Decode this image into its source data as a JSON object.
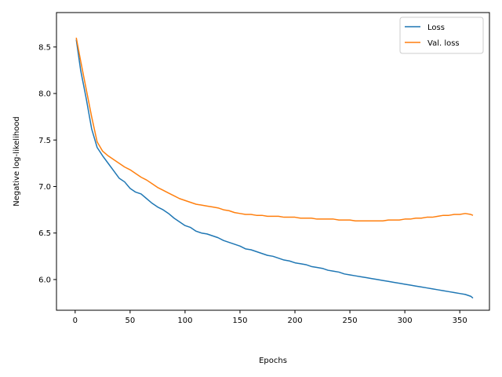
{
  "chart_data": {
    "type": "line",
    "title": "",
    "xlabel": "Epochs",
    "ylabel": "Negative log-likelihood",
    "xlim": [
      -17,
      377
    ],
    "ylim": [
      5.67,
      8.87
    ],
    "xticks": [
      0,
      50,
      100,
      150,
      200,
      250,
      300,
      350
    ],
    "yticks": [
      6.0,
      6.5,
      7.0,
      7.5,
      8.0,
      8.5
    ],
    "grid": false,
    "legend_position": "top-right",
    "series": [
      {
        "name": "Loss",
        "color": "#1f77b4",
        "points": [
          [
            1,
            8.58
          ],
          [
            5,
            8.25
          ],
          [
            10,
            7.95
          ],
          [
            15,
            7.62
          ],
          [
            20,
            7.42
          ],
          [
            25,
            7.33
          ],
          [
            30,
            7.25
          ],
          [
            35,
            7.17
          ],
          [
            40,
            7.09
          ],
          [
            45,
            7.05
          ],
          [
            50,
            6.98
          ],
          [
            55,
            6.94
          ],
          [
            60,
            6.92
          ],
          [
            65,
            6.87
          ],
          [
            70,
            6.82
          ],
          [
            75,
            6.78
          ],
          [
            80,
            6.75
          ],
          [
            85,
            6.71
          ],
          [
            90,
            6.66
          ],
          [
            95,
            6.62
          ],
          [
            100,
            6.58
          ],
          [
            105,
            6.56
          ],
          [
            110,
            6.52
          ],
          [
            115,
            6.5
          ],
          [
            120,
            6.49
          ],
          [
            125,
            6.47
          ],
          [
            130,
            6.45
          ],
          [
            135,
            6.42
          ],
          [
            140,
            6.4
          ],
          [
            145,
            6.38
          ],
          [
            150,
            6.36
          ],
          [
            155,
            6.33
          ],
          [
            160,
            6.32
          ],
          [
            165,
            6.3
          ],
          [
            170,
            6.28
          ],
          [
            175,
            6.26
          ],
          [
            180,
            6.25
          ],
          [
            185,
            6.23
          ],
          [
            190,
            6.21
          ],
          [
            195,
            6.2
          ],
          [
            200,
            6.18
          ],
          [
            205,
            6.17
          ],
          [
            210,
            6.16
          ],
          [
            215,
            6.14
          ],
          [
            220,
            6.13
          ],
          [
            225,
            6.12
          ],
          [
            230,
            6.1
          ],
          [
            235,
            6.09
          ],
          [
            240,
            6.08
          ],
          [
            245,
            6.06
          ],
          [
            250,
            6.05
          ],
          [
            255,
            6.04
          ],
          [
            260,
            6.03
          ],
          [
            265,
            6.02
          ],
          [
            270,
            6.01
          ],
          [
            275,
            6.0
          ],
          [
            280,
            5.99
          ],
          [
            285,
            5.98
          ],
          [
            290,
            5.97
          ],
          [
            295,
            5.96
          ],
          [
            300,
            5.95
          ],
          [
            305,
            5.94
          ],
          [
            310,
            5.93
          ],
          [
            315,
            5.92
          ],
          [
            320,
            5.91
          ],
          [
            325,
            5.9
          ],
          [
            330,
            5.89
          ],
          [
            335,
            5.88
          ],
          [
            340,
            5.87
          ],
          [
            345,
            5.86
          ],
          [
            350,
            5.85
          ],
          [
            355,
            5.84
          ],
          [
            360,
            5.82
          ],
          [
            362,
            5.8
          ]
        ]
      },
      {
        "name": "Val. loss",
        "color": "#ff7f0e",
        "points": [
          [
            1,
            8.6
          ],
          [
            5,
            8.35
          ],
          [
            10,
            8.05
          ],
          [
            15,
            7.75
          ],
          [
            20,
            7.48
          ],
          [
            25,
            7.38
          ],
          [
            30,
            7.33
          ],
          [
            35,
            7.29
          ],
          [
            40,
            7.25
          ],
          [
            45,
            7.21
          ],
          [
            50,
            7.18
          ],
          [
            55,
            7.14
          ],
          [
            60,
            7.1
          ],
          [
            65,
            7.07
          ],
          [
            70,
            7.03
          ],
          [
            75,
            6.99
          ],
          [
            80,
            6.96
          ],
          [
            85,
            6.93
          ],
          [
            90,
            6.9
          ],
          [
            95,
            6.87
          ],
          [
            100,
            6.85
          ],
          [
            105,
            6.83
          ],
          [
            110,
            6.81
          ],
          [
            115,
            6.8
          ],
          [
            120,
            6.79
          ],
          [
            125,
            6.78
          ],
          [
            130,
            6.77
          ],
          [
            135,
            6.75
          ],
          [
            140,
            6.74
          ],
          [
            145,
            6.72
          ],
          [
            150,
            6.71
          ],
          [
            155,
            6.7
          ],
          [
            160,
            6.7
          ],
          [
            165,
            6.69
          ],
          [
            170,
            6.69
          ],
          [
            175,
            6.68
          ],
          [
            180,
            6.68
          ],
          [
            185,
            6.68
          ],
          [
            190,
            6.67
          ],
          [
            195,
            6.67
          ],
          [
            200,
            6.67
          ],
          [
            205,
            6.66
          ],
          [
            210,
            6.66
          ],
          [
            215,
            6.66
          ],
          [
            220,
            6.65
          ],
          [
            225,
            6.65
          ],
          [
            230,
            6.65
          ],
          [
            235,
            6.65
          ],
          [
            240,
            6.64
          ],
          [
            245,
            6.64
          ],
          [
            250,
            6.64
          ],
          [
            255,
            6.63
          ],
          [
            260,
            6.63
          ],
          [
            265,
            6.63
          ],
          [
            270,
            6.63
          ],
          [
            275,
            6.63
          ],
          [
            280,
            6.63
          ],
          [
            285,
            6.64
          ],
          [
            290,
            6.64
          ],
          [
            295,
            6.64
          ],
          [
            300,
            6.65
          ],
          [
            305,
            6.65
          ],
          [
            310,
            6.66
          ],
          [
            315,
            6.66
          ],
          [
            320,
            6.67
          ],
          [
            325,
            6.67
          ],
          [
            330,
            6.68
          ],
          [
            335,
            6.69
          ],
          [
            340,
            6.69
          ],
          [
            345,
            6.7
          ],
          [
            350,
            6.7
          ],
          [
            355,
            6.71
          ],
          [
            360,
            6.7
          ],
          [
            362,
            6.69
          ]
        ]
      }
    ]
  }
}
